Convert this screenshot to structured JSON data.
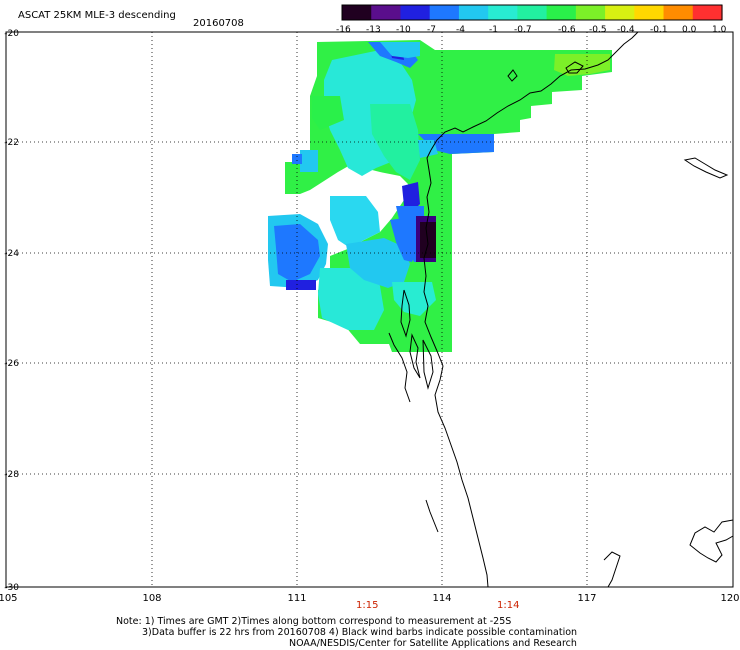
{
  "header": {
    "title": "ASCAT 25KM MLE-3 descending",
    "date": "20160708"
  },
  "colorbar": {
    "labels": [
      "-16",
      "-13",
      "-10",
      "-7",
      "-4",
      "-1",
      "-0.7",
      "-0.6",
      "-0.5",
      "-0.4",
      "-0.1",
      "0.0",
      "1.0"
    ],
    "colors": [
      "#200020",
      "#5a0e8c",
      "#2020e0",
      "#1e78ff",
      "#22c8f0",
      "#28ecd2",
      "#22f0a0",
      "#2af04a",
      "#7cf028",
      "#d8f012",
      "#ffd800",
      "#ff8c00",
      "#ff3030"
    ]
  },
  "axes": {
    "lat_labels": [
      "-20",
      "-22",
      "-24",
      "-26",
      "-28",
      "-30"
    ],
    "lon_labels": [
      "105",
      "108",
      "111",
      "114",
      "117",
      "120"
    ]
  },
  "times": [
    "1:15",
    "1:14"
  ],
  "notes": [
    "Note: 1) Times are GMT 2)Times along bottom correspond to measurement at -25S",
    "3)Data buffer is 22 hrs from 20160708 4) Black wind barbs indicate possible contamination",
    "NOAA/NESDIS/Center for Satellite Applications and Research"
  ]
}
